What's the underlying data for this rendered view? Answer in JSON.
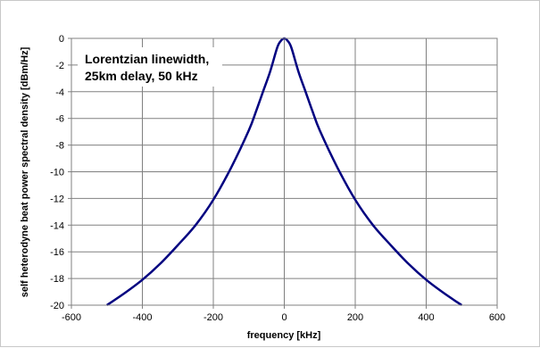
{
  "chart_data": {
    "type": "line",
    "title": "",
    "xlabel": "frequency [kHz]",
    "ylabel": "self heterodyne beat power spectral density [dBm/Hz]",
    "xlim": [
      -600,
      600
    ],
    "ylim": [
      -20,
      0
    ],
    "xticks": [
      -600,
      -400,
      -200,
      0,
      200,
      400,
      600
    ],
    "yticks": [
      0,
      -2,
      -4,
      -6,
      -8,
      -10,
      -12,
      -14,
      -16,
      -18,
      -20
    ],
    "grid": true,
    "legend": "none",
    "annotation": {
      "lines": [
        "Lorentzian linewidth,",
        "25km delay, 50 kHz"
      ]
    },
    "series": [
      {
        "color": "#000080",
        "x": [
          -500,
          -450,
          -400,
          -350,
          -300,
          -250,
          -200,
          -150,
          -100,
          -80,
          -60,
          -40,
          -20,
          -10,
          0,
          10,
          20,
          40,
          60,
          80,
          100,
          150,
          200,
          250,
          300,
          350,
          400,
          450,
          500
        ],
        "y": [
          -20.0,
          -19.1,
          -18.1,
          -16.9,
          -15.5,
          -14.0,
          -12.1,
          -9.7,
          -6.9,
          -5.5,
          -4.0,
          -2.5,
          -0.7,
          -0.2,
          0.0,
          -0.2,
          -0.7,
          -2.5,
          -4.0,
          -5.5,
          -6.9,
          -9.7,
          -12.1,
          -14.0,
          -15.5,
          -16.9,
          -18.1,
          -19.1,
          -20.0
        ]
      }
    ]
  }
}
